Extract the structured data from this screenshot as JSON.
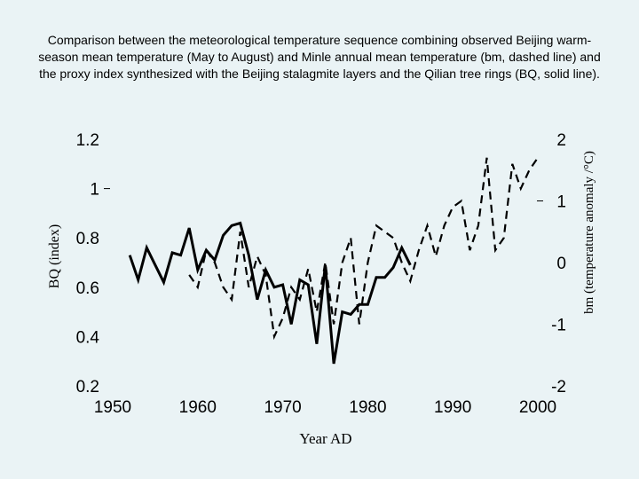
{
  "chart_data": {
    "type": "line",
    "title": "Comparison between the meteorological temperature sequence combining observed Beijing warm-season mean temperature (May to August) and Minle annual mean temperature (bm, dashed line) and the proxy index synthesized with the Beijing stalagmite layers and the Qilian tree rings (BQ, solid line).",
    "xlabel": "Year AD",
    "ylabel_left": "BQ (index)",
    "ylabel_right": "bm (temperature anomaly /°C)",
    "xlim": [
      1950,
      2000
    ],
    "ylim_left": [
      0.2,
      1.2
    ],
    "ylim_right": [
      -2,
      2
    ],
    "x_ticks": [
      "1950",
      "1960",
      "1970",
      "1980",
      "1990",
      "2000"
    ],
    "y_left_ticks": [
      "1.2",
      "1",
      "0.8",
      "0.6",
      "0.4",
      "0.2"
    ],
    "y_right_ticks": [
      "2",
      "1",
      "0",
      "-1",
      "-2"
    ],
    "series": [
      {
        "name": "BQ",
        "axis": "left",
        "style": "solid",
        "x": [
          1952,
          1953,
          1954,
          1955,
          1956,
          1957,
          1958,
          1959,
          1960,
          1961,
          1962,
          1963,
          1964,
          1965,
          1966,
          1967,
          1968,
          1969,
          1970,
          1971,
          1972,
          1973,
          1974,
          1975,
          1976,
          1977,
          1978,
          1979,
          1980,
          1981,
          1982,
          1983,
          1984,
          1985
        ],
        "values": [
          0.73,
          0.63,
          0.76,
          0.69,
          0.62,
          0.74,
          0.73,
          0.84,
          0.67,
          0.75,
          0.71,
          0.81,
          0.85,
          0.86,
          0.73,
          0.55,
          0.67,
          0.6,
          0.61,
          0.45,
          0.63,
          0.61,
          0.37,
          0.69,
          0.29,
          0.5,
          0.49,
          0.53,
          0.53,
          0.64,
          0.64,
          0.68,
          0.76,
          0.69
        ]
      },
      {
        "name": "bm",
        "axis": "right",
        "style": "dashed",
        "x": [
          1959,
          1960,
          1961,
          1962,
          1963,
          1964,
          1965,
          1966,
          1967,
          1968,
          1969,
          1970,
          1971,
          1972,
          1973,
          1974,
          1975,
          1976,
          1977,
          1978,
          1979,
          1980,
          1981,
          1982,
          1983,
          1984,
          1985,
          1986,
          1987,
          1988,
          1989,
          1990,
          1991,
          1992,
          1993,
          1994,
          1995,
          1996,
          1997,
          1998,
          1999,
          2000
        ],
        "values": [
          -0.2,
          -0.4,
          0.2,
          0.0,
          -0.4,
          -0.6,
          0.5,
          -0.4,
          0.1,
          -0.2,
          -1.2,
          -0.9,
          -0.4,
          -0.6,
          -0.1,
          -0.8,
          0.0,
          -1.0,
          0.0,
          0.4,
          -1.0,
          0.0,
          0.6,
          0.5,
          0.4,
          0.0,
          -0.3,
          0.2,
          0.6,
          0.1,
          0.6,
          0.9,
          1.0,
          0.2,
          0.6,
          1.7,
          0.2,
          0.4,
          1.6,
          1.2,
          1.5,
          1.7
        ]
      }
    ]
  }
}
